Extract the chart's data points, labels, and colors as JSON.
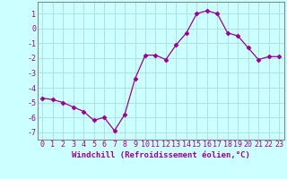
{
  "x": [
    0,
    1,
    2,
    3,
    4,
    5,
    6,
    7,
    8,
    9,
    10,
    11,
    12,
    13,
    14,
    15,
    16,
    17,
    18,
    19,
    20,
    21,
    22,
    23
  ],
  "y": [
    -4.7,
    -4.8,
    -5.0,
    -5.3,
    -5.6,
    -6.2,
    -6.0,
    -6.9,
    -5.8,
    -3.4,
    -1.8,
    -1.8,
    -2.1,
    -1.1,
    -0.3,
    1.0,
    1.2,
    1.0,
    -0.3,
    -0.5,
    -1.3,
    -2.1,
    -1.9,
    -1.9
  ],
  "xlabel": "Windchill (Refroidissement éolien,°C)",
  "xlim": [
    -0.5,
    23.5
  ],
  "ylim": [
    -7.5,
    1.8
  ],
  "yticks": [
    1,
    0,
    -1,
    -2,
    -3,
    -4,
    -5,
    -6,
    -7
  ],
  "xticks": [
    0,
    1,
    2,
    3,
    4,
    5,
    6,
    7,
    8,
    9,
    10,
    11,
    12,
    13,
    14,
    15,
    16,
    17,
    18,
    19,
    20,
    21,
    22,
    23
  ],
  "line_color": "#990099",
  "marker": "D",
  "marker_size": 2.5,
  "bg_color": "#ccffff",
  "grid_color": "#aadddd",
  "xlabel_fontsize": 6.5,
  "tick_fontsize": 6,
  "xlabel_color": "#990099",
  "tick_color": "#990099",
  "spine_color": "#888888"
}
